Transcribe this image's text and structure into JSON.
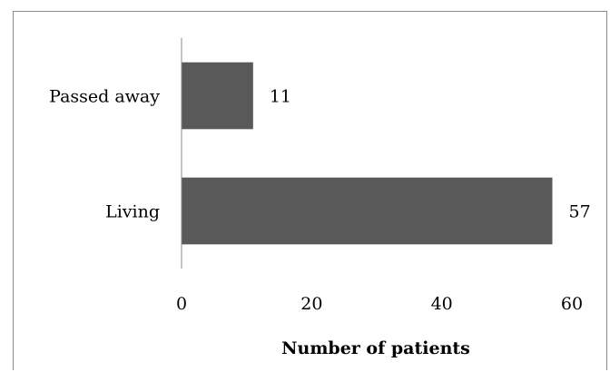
{
  "chart_data": {
    "type": "bar",
    "orientation": "horizontal",
    "title": "",
    "xlabel": "Number of patients",
    "ylabel": "",
    "categories": [
      "Passed away",
      "Living"
    ],
    "values": [
      11,
      57
    ],
    "data_labels": [
      "11",
      "57"
    ],
    "xlim": [
      0,
      60
    ],
    "xticks": [
      "0",
      "20",
      "40",
      "60"
    ],
    "grid": false,
    "legend": "none",
    "bar_color": "#595959"
  }
}
